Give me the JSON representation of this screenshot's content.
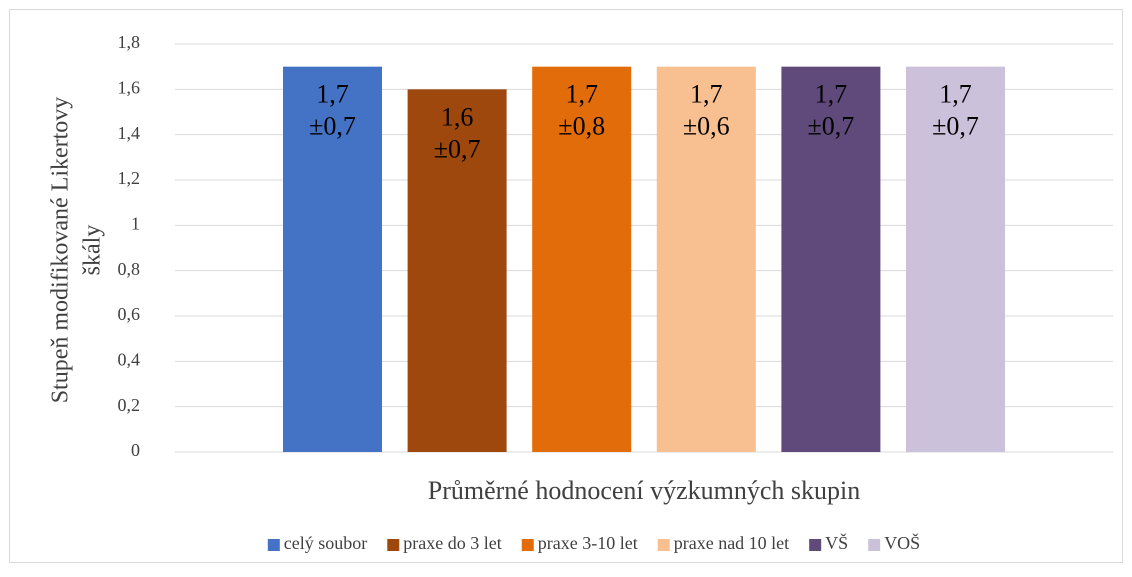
{
  "chart_data": {
    "type": "bar",
    "xlabel": "Průměrné hodnocení výzkumných skupin",
    "ylabel": [
      "Stupeň modifikované Likertovy",
      "škály"
    ],
    "categories": [
      "Průměrné hodnocení výzkumných skupin"
    ],
    "series": [
      {
        "name": "celý soubor",
        "color": "#4472c4",
        "values": [
          1.7
        ],
        "value_labels": [
          "1,7"
        ],
        "error_labels": [
          "±0,7"
        ]
      },
      {
        "name": "praxe do 3 let",
        "color": "#9e480e",
        "values": [
          1.6
        ],
        "value_labels": [
          "1,6"
        ],
        "error_labels": [
          "±0,7"
        ]
      },
      {
        "name": "praxe 3-10 let",
        "color": "#e36c0a",
        "values": [
          1.7
        ],
        "value_labels": [
          "1,7"
        ],
        "error_labels": [
          "±0,8"
        ]
      },
      {
        "name": "praxe nad 10 let",
        "color": "#f8c090",
        "values": [
          1.7
        ],
        "value_labels": [
          "1,7"
        ],
        "error_labels": [
          "±0,6"
        ]
      },
      {
        "name": "VŠ",
        "color": "#604a7b",
        "values": [
          1.7
        ],
        "value_labels": [
          "1,7"
        ],
        "error_labels": [
          "±0,7"
        ]
      },
      {
        "name": "VOŠ",
        "color": "#ccc1da",
        "values": [
          1.7
        ],
        "value_labels": [
          "1,7"
        ],
        "error_labels": [
          "±0,7"
        ]
      }
    ],
    "ylim": [
      0,
      1.8
    ],
    "yticks": [
      0,
      {
        "value": 0.2,
        "label": "0,2"
      },
      {
        "value": 0.4,
        "label": "0,4"
      },
      {
        "value": 0.6,
        "label": "0,6"
      },
      {
        "value": 0.8,
        "label": "0,8"
      },
      1,
      {
        "value": 1.2,
        "label": "1,2"
      },
      {
        "value": 1.4,
        "label": "1,4"
      },
      {
        "value": 1.6,
        "label": "1,6"
      },
      {
        "value": 1.8,
        "label": "1,8"
      }
    ],
    "grid": true,
    "legend": "bottom"
  }
}
